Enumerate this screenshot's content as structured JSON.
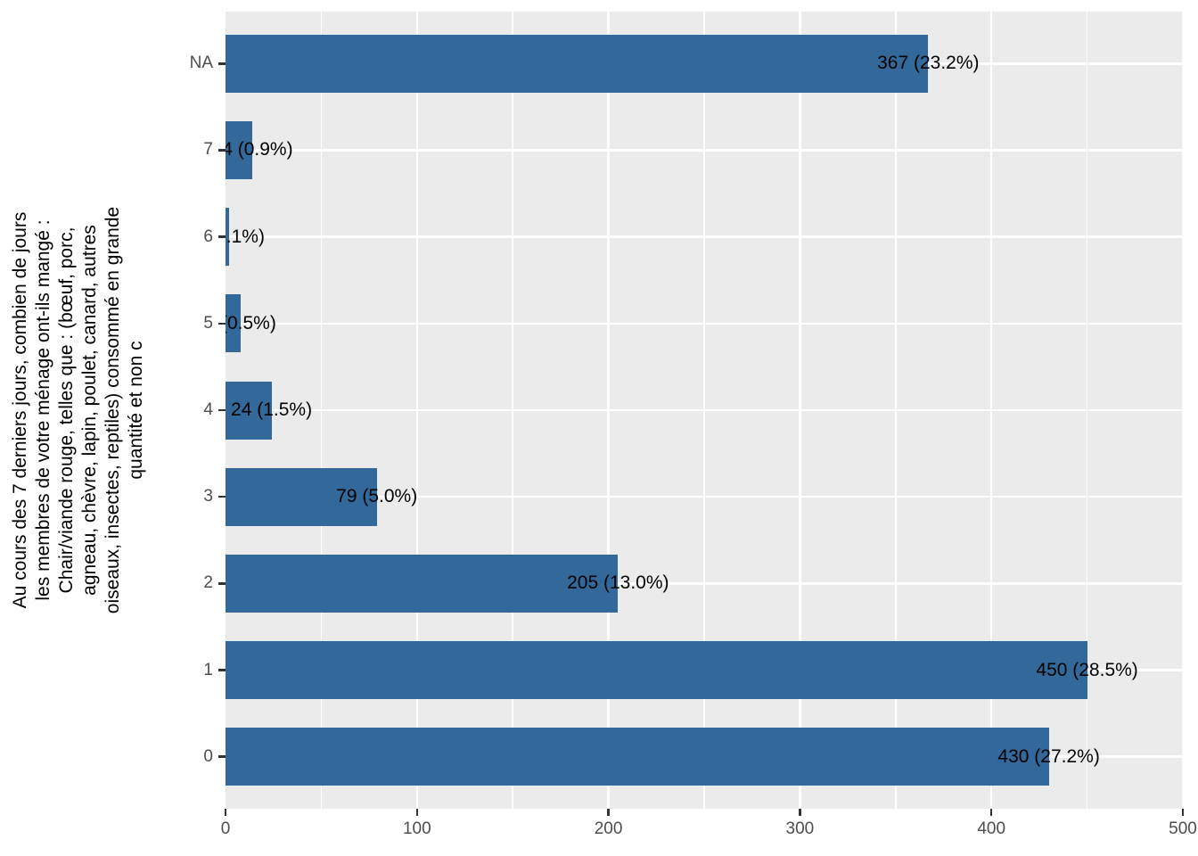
{
  "chart_data": {
    "type": "bar",
    "orientation": "horizontal",
    "categories": [
      "NA",
      "7",
      "6",
      "5",
      "4",
      "3",
      "2",
      "1",
      "0"
    ],
    "values": [
      367,
      14,
      2,
      8,
      24,
      79,
      205,
      450,
      430
    ],
    "bar_labels": [
      "367 (23.2%)",
      "14 (0.9%)",
      "2 (0.1%)",
      "8 (0.5%)",
      "24 (1.5%)",
      "79 (5.0%)",
      "205 (13.0%)",
      "450 (28.5%)",
      "430 (27.2%)"
    ],
    "x_ticks": [
      0,
      100,
      200,
      300,
      400,
      500
    ],
    "x_minor_gridlines": [
      50,
      150,
      250,
      350,
      450
    ],
    "xlim": [
      0,
      500
    ],
    "xlabel": "",
    "ylabel": "Au cours des 7 derniers jours, combien de jours les membres de votre ménage ont-ils mangé : Chair/viande rouge, telles que : (bœuf, porc, agneau, chèvre, lapin, poulet, canard, autres oiseaux, insectes, reptiles) consommé en grande quantité et non c",
    "ylabel_lines": [
      "Au cours des 7 derniers jours, combien de jours",
      "les membres de votre ménage ont-ils mangé :",
      "Chair/viande rouge, telles que : (bœuf, porc,",
      "agneau, chèvre, lapin, poulet, canard, autres",
      "oiseaux, insectes, reptiles) consommé en grande",
      "quantité et non c"
    ],
    "grid": {
      "major": true,
      "minor": true,
      "color": "#FFFFFF"
    },
    "layout_hints": {
      "panel_bg": "#EBEBEB",
      "legend": "none"
    },
    "colors": {
      "bar_fill": "#33689B",
      "panel_bg": "#EBEBEB",
      "grid_line": "#FFFFFF",
      "tick_mark": "#333333",
      "tick_label": "#4D4D4D",
      "bar_label": "#000000",
      "axis_title": "#000000",
      "figure_bg": "#FFFFFF"
    }
  }
}
